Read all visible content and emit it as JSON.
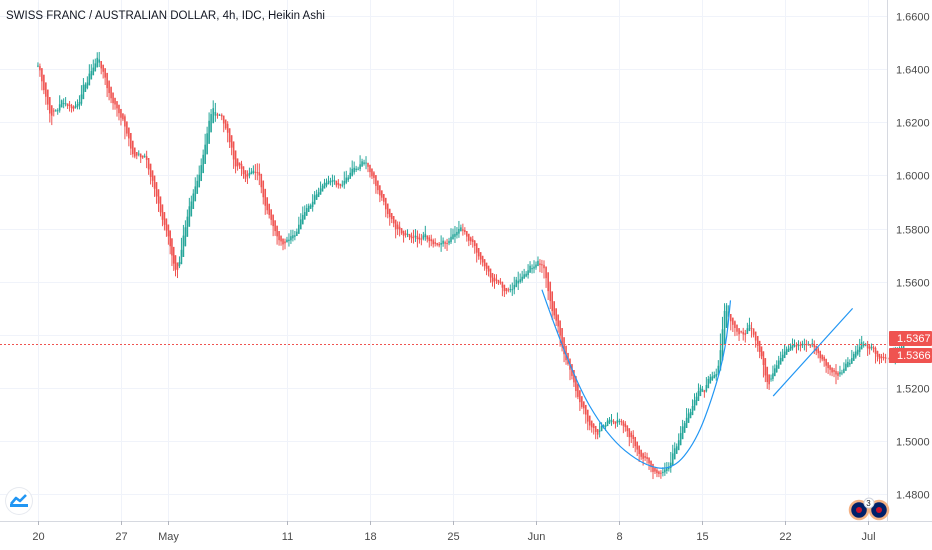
{
  "header": {
    "title": "SWISS FRANC / AUSTRALIAN DOLLAR, 4h, IDC, Heikin Ashi"
  },
  "price_tags": {
    "last": "1.5367",
    "prev": "1.5366",
    "color": "#ef5350"
  },
  "colors": {
    "up": "#26a69a",
    "down": "#ef5350",
    "drawing": "#2196f3"
  },
  "badge": {
    "count": "3"
  },
  "logo": {
    "icon": "tradingview-logo-icon"
  },
  "chart_data": {
    "type": "candlestick",
    "title": "SWISS FRANC / AUSTRALIAN DOLLAR, 4h, IDC, Heikin Ashi",
    "xlabel": "",
    "ylabel": "",
    "ylim": [
      1.47,
      1.666
    ],
    "y_ticks": [
      "1.6600",
      "1.6400",
      "1.6200",
      "1.6000",
      "1.5800",
      "1.5600",
      "1.5400",
      "1.5200",
      "1.5000",
      "1.4800"
    ],
    "x_ticks": [
      "20",
      "27",
      "May",
      "11",
      "18",
      "25",
      "Jun",
      "8",
      "15",
      "22",
      "Jul"
    ],
    "x_tick_days": [
      0,
      7,
      11,
      21,
      28,
      35,
      42,
      49,
      56,
      63,
      70
    ],
    "x_range_days": [
      -3.2,
      71.6
    ],
    "bars_per_day": 6,
    "last_price": 1.5367,
    "series_points": [
      [
        0,
        1.641
      ],
      [
        1,
        1.622
      ],
      [
        2,
        1.628
      ],
      [
        3,
        1.625
      ],
      [
        4,
        1.635
      ],
      [
        5,
        1.645
      ],
      [
        6,
        1.63
      ],
      [
        7,
        1.622
      ],
      [
        8,
        1.607
      ],
      [
        9,
        1.608
      ],
      [
        10,
        1.59
      ],
      [
        11,
        1.575
      ],
      [
        11.6,
        1.563
      ],
      [
        12.6,
        1.585
      ],
      [
        13.6,
        1.603
      ],
      [
        14.6,
        1.625
      ],
      [
        15.5,
        1.622
      ],
      [
        16.5,
        1.605
      ],
      [
        17.5,
        1.6
      ],
      [
        18.5,
        1.601
      ],
      [
        19.5,
        1.583
      ],
      [
        20.5,
        1.575
      ],
      [
        21.5,
        1.578
      ],
      [
        22.5,
        1.588
      ],
      [
        23.5,
        1.593
      ],
      [
        24.5,
        1.599
      ],
      [
        25.5,
        1.597
      ],
      [
        26.5,
        1.602
      ],
      [
        27.5,
        1.605
      ],
      [
        28.5,
        1.595
      ],
      [
        29.5,
        1.584
      ],
      [
        30.5,
        1.578
      ],
      [
        31.5,
        1.576
      ],
      [
        32.5,
        1.577
      ],
      [
        33.5,
        1.574
      ],
      [
        34.5,
        1.576
      ],
      [
        35.5,
        1.58
      ],
      [
        36.5,
        1.575
      ],
      [
        37.5,
        1.567
      ],
      [
        38.5,
        1.56
      ],
      [
        39.5,
        1.557
      ],
      [
        40.5,
        1.561
      ],
      [
        41.5,
        1.566
      ],
      [
        42.5,
        1.566
      ],
      [
        43.2,
        1.552
      ],
      [
        44.2,
        1.535
      ],
      [
        45.2,
        1.52
      ],
      [
        46.2,
        1.508
      ],
      [
        47.2,
        1.503
      ],
      [
        48.2,
        1.509
      ],
      [
        49.2,
        1.506
      ],
      [
        50.2,
        1.5
      ],
      [
        51.2,
        1.492
      ],
      [
        52.2,
        1.488
      ],
      [
        53.2,
        1.491
      ],
      [
        54.2,
        1.505
      ],
      [
        55.2,
        1.515
      ],
      [
        56.2,
        1.521
      ],
      [
        57.2,
        1.525
      ],
      [
        57.9,
        1.553
      ],
      [
        58.6,
        1.542
      ],
      [
        59.3,
        1.54
      ],
      [
        60.0,
        1.545
      ],
      [
        60.7,
        1.535
      ],
      [
        61.5,
        1.522
      ],
      [
        62.3,
        1.531
      ],
      [
        63.3,
        1.535
      ],
      [
        64.3,
        1.537
      ],
      [
        65.3,
        1.536
      ],
      [
        66.3,
        1.529
      ],
      [
        67.3,
        1.525
      ],
      [
        68.3,
        1.53
      ],
      [
        69.3,
        1.537
      ],
      [
        70.3,
        1.534
      ],
      [
        71.3,
        1.53
      ],
      [
        72.3,
        1.533
      ],
      [
        73.0,
        1.537
      ]
    ],
    "drawings": [
      {
        "type": "arc",
        "name": "rounding-bottom-curve",
        "points": [
          [
            42.5,
            1.557
          ],
          [
            45.0,
            1.525
          ],
          [
            48.0,
            1.502
          ],
          [
            51.0,
            1.491
          ],
          [
            53.5,
            1.489
          ],
          [
            55.5,
            1.5
          ],
          [
            57.0,
            1.518
          ],
          [
            58.0,
            1.535
          ],
          [
            58.4,
            1.553
          ]
        ]
      },
      {
        "type": "trendline",
        "name": "trend-line",
        "points": [
          [
            62.0,
            1.517
          ],
          [
            68.7,
            1.55
          ]
        ]
      }
    ]
  }
}
